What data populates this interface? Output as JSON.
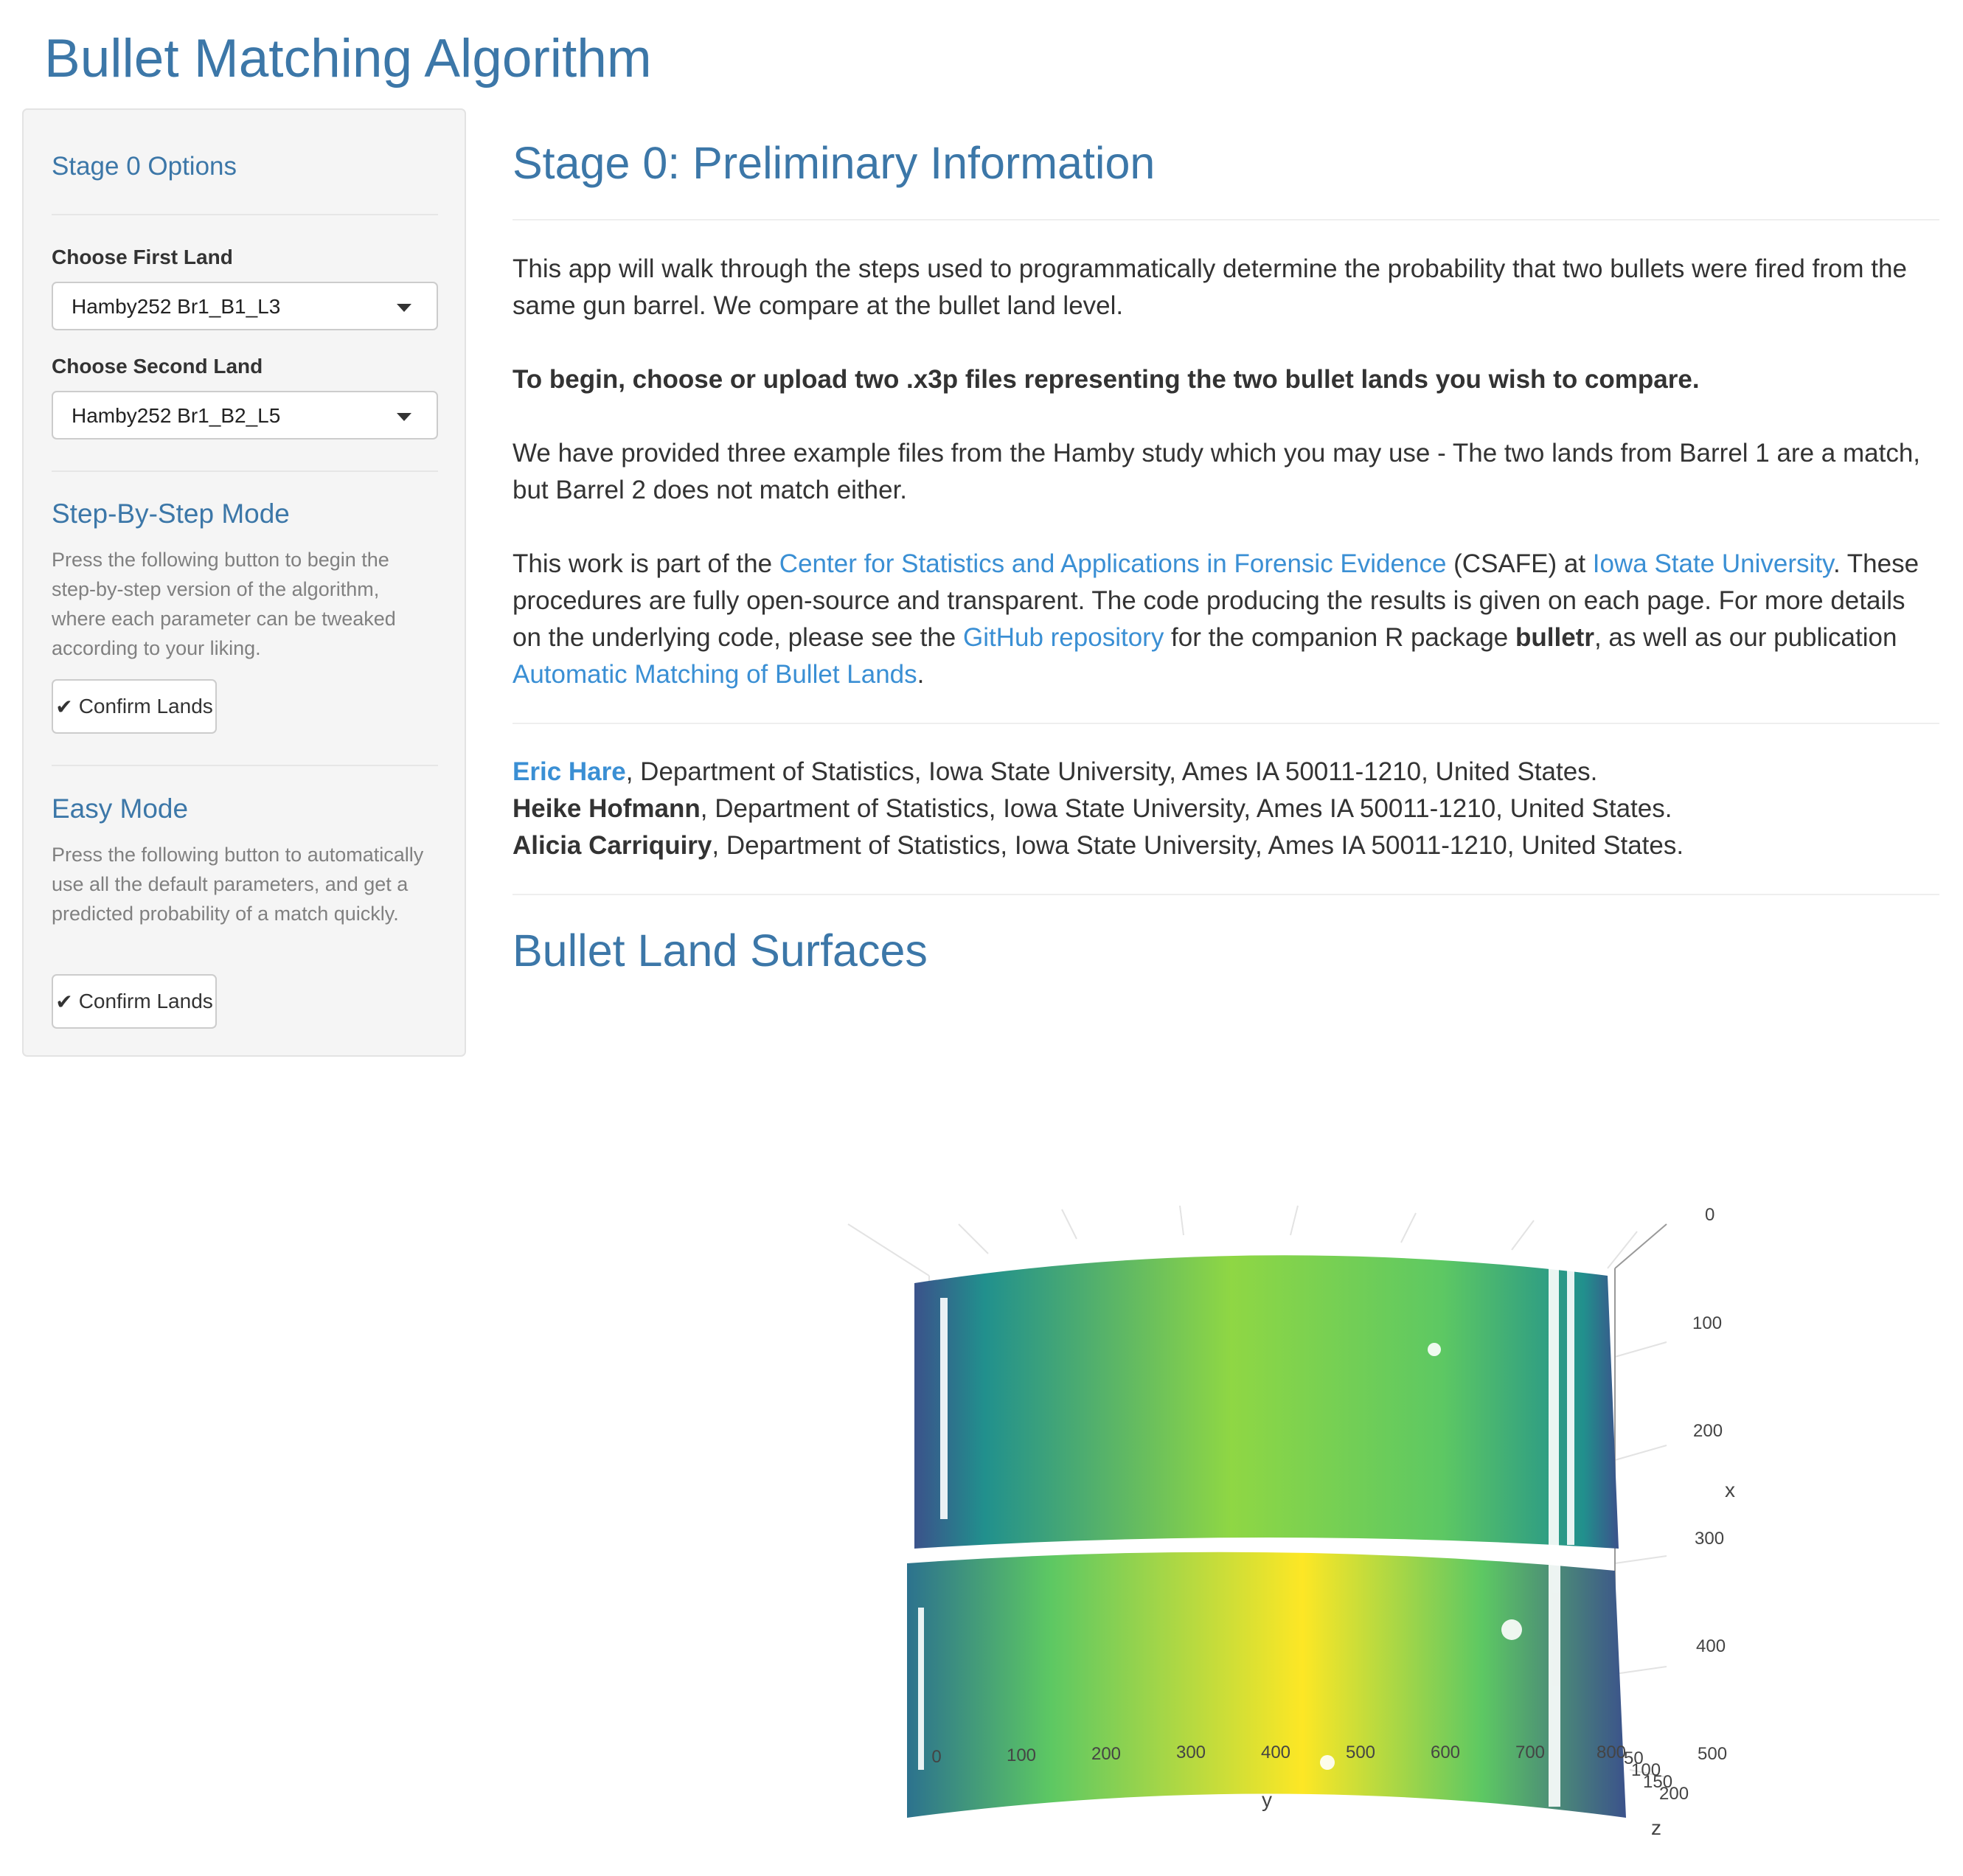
{
  "app": {
    "title": "Bullet Matching Algorithm"
  },
  "sidebar": {
    "options_title": "Stage 0 Options",
    "first_land": {
      "label": "Choose First Land",
      "value": "Hamby252 Br1_B1_L3"
    },
    "second_land": {
      "label": "Choose Second Land",
      "value": "Hamby252 Br1_B2_L5"
    },
    "step_mode": {
      "title": "Step-By-Step Mode",
      "description": "Press the following button to begin the step-by-step version of the algorithm, where each parameter can be tweaked according to your liking.",
      "button": "Confirm Lands"
    },
    "easy_mode": {
      "title": "Easy Mode",
      "description": "Press the following button to automatically use all the default parameters, and get a predicted probability of a match quickly.",
      "button": "Confirm Lands"
    }
  },
  "main": {
    "stage_title": "Stage 0: Preliminary Information",
    "intro": "This app will walk through the steps used to programmatically determine the probability that two bullets were fired from the same gun barrel. We compare at the bullet land level.",
    "instruction": "To begin, choose or upload two .x3p files representing the two bullet lands you wish to compare.",
    "examples": "We have provided three example files from the Hamby study which you may use - The two lands from Barrel 1 are a match, but Barrel 2 does not match either.",
    "work": {
      "t1": "This work is part of the ",
      "link_csafe": "Center for Statistics and Applications in Forensic Evidence",
      "t2": " (CSAFE) at ",
      "link_isu": "Iowa State University",
      "t3": ". These procedures are fully open-source and transparent. The code producing the results is given on each page. For more details on the underlying code, please see the ",
      "link_github": "GitHub repository",
      "t4": " for the companion R package ",
      "pkg": "bulletr",
      "t5": ", as well as our publication ",
      "link_pub": "Automatic Matching of Bullet Lands",
      "t6": "."
    },
    "authors": [
      {
        "name": "Eric Hare",
        "affiliation": ", Department of Statistics, Iowa State University, Ames IA 50011-1210, United States."
      },
      {
        "name": "Heike Hofmann",
        "affiliation": ", Department of Statistics, Iowa State University, Ames IA 50011-1210, United States."
      },
      {
        "name": "Alicia Carriquiry",
        "affiliation": ", Department of Statistics, Iowa State University, Ames IA 50011-1210, United States."
      }
    ],
    "surfaces_title": "Bullet Land Surfaces"
  },
  "plot": {
    "axis_y_label": "y",
    "axis_x_label": "x",
    "axis_z_label": "z",
    "y_ticks": [
      "0",
      "100",
      "200",
      "300",
      "400",
      "500",
      "600",
      "700",
      "800"
    ],
    "x_ticks": [
      "0",
      "100",
      "200",
      "300",
      "400",
      "500"
    ],
    "z_ticks": [
      "50",
      "100",
      "150",
      "200"
    ],
    "colorscale": [
      "#3b528b",
      "#21908d",
      "#5dc863",
      "#fde725"
    ]
  }
}
